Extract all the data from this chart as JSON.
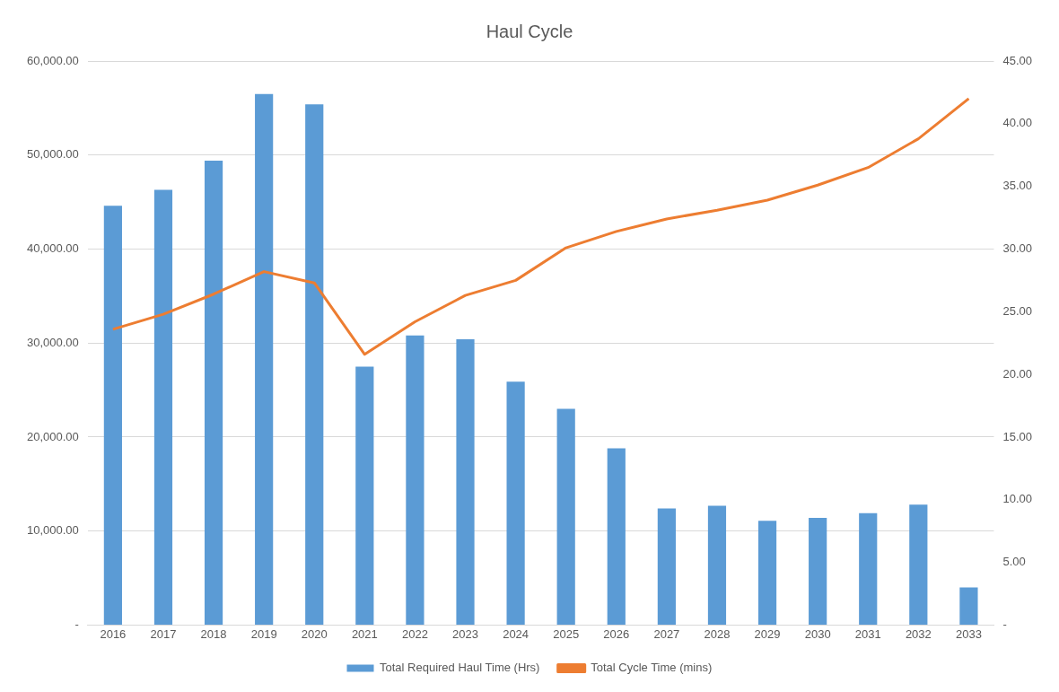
{
  "chart_data": {
    "type": "bar",
    "title": "Haul Cycle",
    "categories": [
      "2016",
      "2017",
      "2018",
      "2019",
      "2020",
      "2021",
      "2022",
      "2023",
      "2024",
      "2025",
      "2026",
      "2027",
      "2028",
      "2029",
      "2030",
      "2031",
      "2032",
      "2033"
    ],
    "series": [
      {
        "name": "Total Required Haul Time (Hrs)",
        "color": "#5b9bd5",
        "values": [
          44600,
          46300,
          49400,
          56500,
          55400,
          27500,
          30800,
          30400,
          25900,
          23000,
          18800,
          12400,
          12700,
          11100,
          11400,
          11900,
          12800,
          4000
        ]
      },
      {
        "name": "Total Cycle Time (mins)",
        "type": "line",
        "axis": "y2",
        "color": "#ed7d31",
        "marker": "none",
        "line_style": "solid",
        "values": [
          23.6,
          24.8,
          26.4,
          28.2,
          27.3,
          21.6,
          24.2,
          26.3,
          27.5,
          30.1,
          31.4,
          32.4,
          33.1,
          33.9,
          35.1,
          36.5,
          38.8,
          42.0
        ]
      }
    ],
    "ylim": [
      0,
      60000
    ],
    "yticks": [
      {
        "value": 0,
        "label": "-"
      },
      {
        "value": 10000,
        "label": "10,000.00"
      },
      {
        "value": 20000,
        "label": "20,000.00"
      },
      {
        "value": 30000,
        "label": "30,000.00"
      },
      {
        "value": 40000,
        "label": "40,000.00"
      },
      {
        "value": 50000,
        "label": "50,000.00"
      },
      {
        "value": 60000,
        "label": "60,000.00"
      }
    ],
    "y2lim": [
      0,
      45
    ],
    "y2ticks": [
      {
        "value": 0,
        "label": "-"
      },
      {
        "value": 5,
        "label": "5.00"
      },
      {
        "value": 10,
        "label": "10.00"
      },
      {
        "value": 15,
        "label": "15.00"
      },
      {
        "value": 20,
        "label": "20.00"
      },
      {
        "value": 25,
        "label": "25.00"
      },
      {
        "value": 30,
        "label": "30.00"
      },
      {
        "value": 35,
        "label": "35.00"
      },
      {
        "value": 40,
        "label": "40.00"
      },
      {
        "value": 45,
        "label": "45.00"
      }
    ],
    "grid": "y",
    "legend": "bottom"
  }
}
